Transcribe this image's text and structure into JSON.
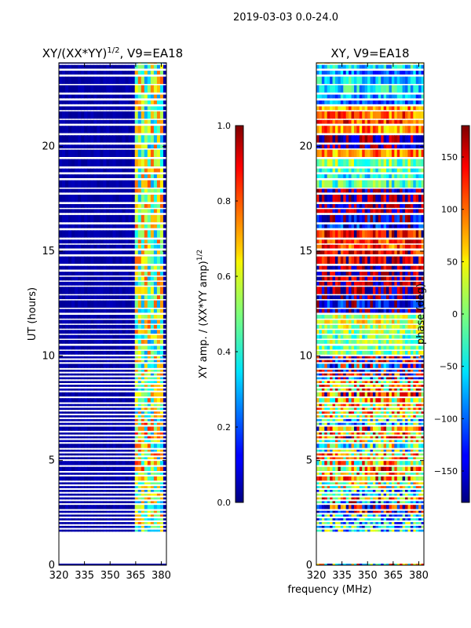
{
  "chart_data": {
    "suptitle": "2019-03-03 0.0-24.0",
    "shared_xlabel": "frequency (MHz)",
    "panels": [
      {
        "type": "heatmap",
        "title_base": "XY/(XX*YY)",
        "title_exp": "1/2",
        "title_suffix": ", V9=EA18",
        "ylabel": "UT (hours)",
        "x_range": [
          320,
          383
        ],
        "y_range": [
          0,
          24
        ],
        "x_ticks": [
          320,
          335,
          350,
          365,
          380
        ],
        "y_ticks": [
          0,
          5,
          10,
          15,
          20
        ],
        "data_start_hour": 1.6,
        "colorbar": {
          "label_base": "XY amp. / (XX*YY amp)",
          "label_exp": "1/2",
          "range": [
            0.0,
            1.0
          ],
          "ticks": [
            "0.0",
            "0.2",
            "0.4",
            "0.6",
            "0.8",
            "1.0"
          ],
          "colormap": "jet"
        }
      },
      {
        "type": "heatmap",
        "title": "XY, V9=EA18",
        "x_range": [
          320,
          383
        ],
        "y_range": [
          0,
          24
        ],
        "x_ticks": [
          320,
          335,
          350,
          365,
          380
        ],
        "y_ticks": [
          0,
          5,
          10,
          15,
          20
        ],
        "data_start_hour": 1.6,
        "colorbar": {
          "label": "phase (deg)",
          "range": [
            -180,
            180
          ],
          "ticks": [
            "−150",
            "−100",
            "−50",
            "0",
            "50",
            "100",
            "150"
          ],
          "tick_values": [
            -150,
            -100,
            -50,
            0,
            50,
            100,
            150
          ],
          "colormap": "jet"
        }
      }
    ]
  }
}
